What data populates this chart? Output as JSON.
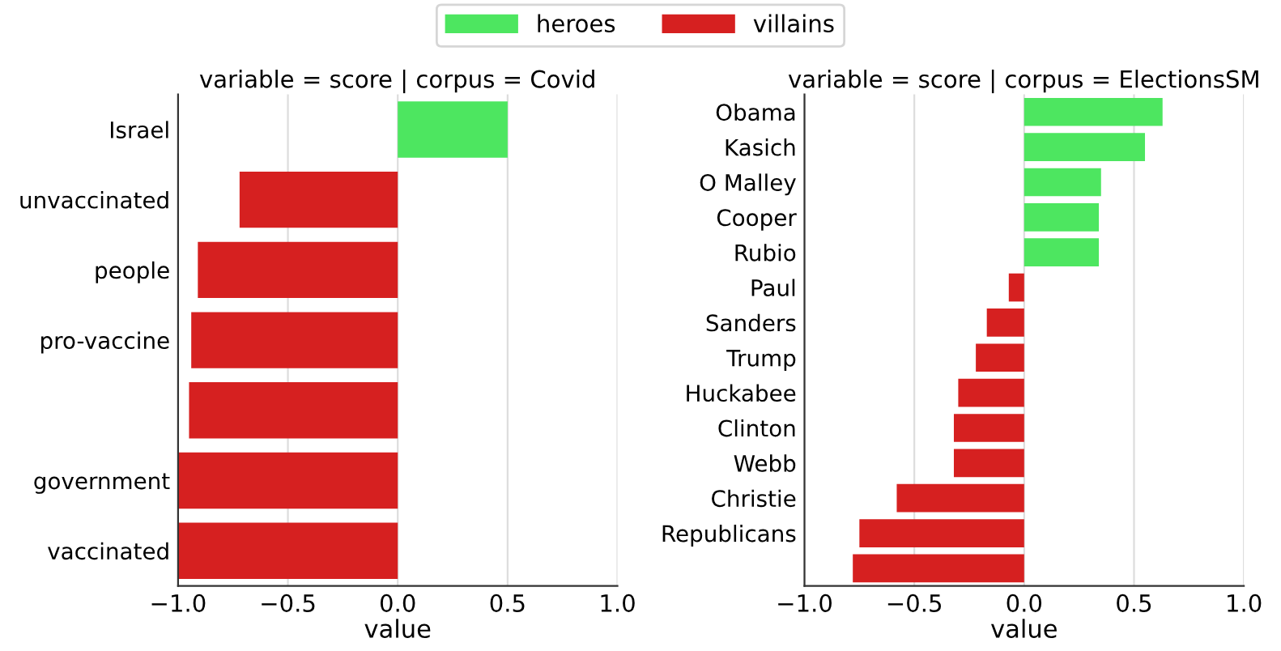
{
  "chart_data": [
    {
      "type": "bar",
      "orientation": "horizontal",
      "stacked": true,
      "title": "variable = score | corpus = Covid",
      "xlabel": "value",
      "categories": [
        "Israel",
        "unvaccinated",
        "people",
        "pro-vaccine",
        null,
        "government",
        "vaccinated"
      ],
      "series": [
        {
          "name": "heroes",
          "color": "#4de660",
          "values": [
            0.5,
            null,
            null,
            null,
            null,
            null,
            null
          ]
        },
        {
          "name": "villains",
          "color": "#d62020",
          "values": [
            null,
            -0.72,
            -0.91,
            -0.94,
            -0.95,
            -1.0,
            -1.0
          ]
        }
      ],
      "xlim": [
        -1,
        1
      ],
      "xticks": [
        {
          "value": -1,
          "label": "−1.0"
        },
        {
          "value": -0.5,
          "label": "−0.5"
        },
        {
          "value": 0,
          "label": "0.0"
        },
        {
          "value": 0.5,
          "label": "0.5"
        },
        {
          "value": 1,
          "label": "1.0"
        }
      ],
      "grid": "x",
      "legend": "top"
    },
    {
      "type": "bar",
      "orientation": "horizontal",
      "stacked": true,
      "title": "variable = score | corpus = ElectionsSM",
      "xlabel": "value",
      "categories": [
        "Obama",
        "Kasich",
        "O Malley",
        "Cooper",
        "Rubio",
        "Paul",
        "Sanders",
        "Trump",
        "Huckabee",
        "Clinton",
        "Webb",
        "Christie",
        "Republicans",
        null
      ],
      "series": [
        {
          "name": "heroes",
          "color": "#4de660",
          "values": [
            0.63,
            0.55,
            0.35,
            0.34,
            0.34,
            null,
            null,
            null,
            null,
            null,
            null,
            null,
            null,
            null
          ]
        },
        {
          "name": "villains",
          "color": "#d62020",
          "values": [
            null,
            null,
            null,
            null,
            null,
            -0.07,
            -0.17,
            -0.22,
            -0.3,
            -0.32,
            -0.32,
            -0.58,
            -0.75,
            -0.78
          ]
        }
      ],
      "xlim": [
        -1,
        1
      ],
      "xticks": [
        {
          "value": -1,
          "label": "−1.0"
        },
        {
          "value": -0.5,
          "label": "−0.5"
        },
        {
          "value": 0,
          "label": "0.0"
        },
        {
          "value": 0.5,
          "label": "0.5"
        },
        {
          "value": 1,
          "label": "1.0"
        }
      ],
      "grid": "x",
      "legend": "top"
    }
  ]
}
